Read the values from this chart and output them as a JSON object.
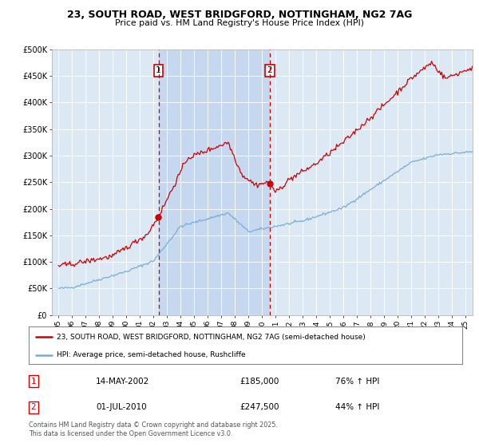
{
  "title_line1": "23, SOUTH ROAD, WEST BRIDGFORD, NOTTINGHAM, NG2 7AG",
  "title_line2": "Price paid vs. HM Land Registry's House Price Index (HPI)",
  "background_color": "#dce9f5",
  "highlight_color": "#c5d8f0",
  "fig_bg_color": "#ffffff",
  "red_line_color": "#cc0000",
  "blue_line_color": "#7aadd4",
  "marker1_date_x": 2002.37,
  "marker2_date_x": 2010.58,
  "marker1_price": 185000,
  "marker2_price": 247500,
  "ylim_min": 0,
  "ylim_max": 500000,
  "xlim_min": 1994.5,
  "xlim_max": 2025.5,
  "legend_label_red": "23, SOUTH ROAD, WEST BRIDGFORD, NOTTINGHAM, NG2 7AG (semi-detached house)",
  "legend_label_blue": "HPI: Average price, semi-detached house, Rushcliffe",
  "annotation1_label": "1",
  "annotation2_label": "2",
  "table_row1": [
    "1",
    "14-MAY-2002",
    "£185,000",
    "76% ↑ HPI"
  ],
  "table_row2": [
    "2",
    "01-JUL-2010",
    "£247,500",
    "44% ↑ HPI"
  ],
  "footer_text": "Contains HM Land Registry data © Crown copyright and database right 2025.\nThis data is licensed under the Open Government Licence v3.0.",
  "yticks": [
    0,
    50000,
    100000,
    150000,
    200000,
    250000,
    300000,
    350000,
    400000,
    450000,
    500000
  ],
  "ytick_labels": [
    "£0",
    "£50K",
    "£100K",
    "£150K",
    "£200K",
    "£250K",
    "£300K",
    "£350K",
    "£400K",
    "£450K",
    "£500K"
  ]
}
